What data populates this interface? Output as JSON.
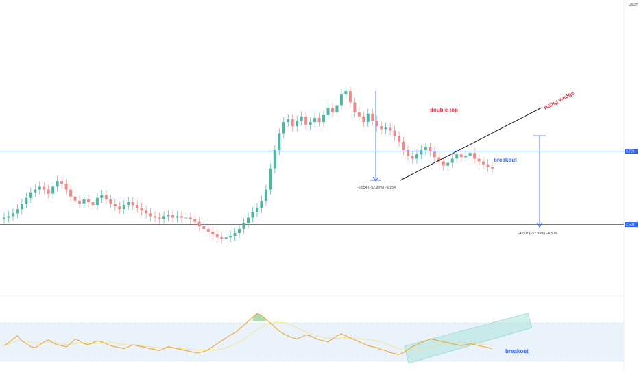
{
  "colors": {
    "up": "#4db6a4",
    "down": "#ef8a8a",
    "hline": "#2962ff",
    "rsi_line": "#f0a020",
    "rsi_ma": "#f4e27a",
    "rsi_band": "#eaf2fb",
    "channel": "#b3e5e0",
    "wedge": "#111111",
    "annot_red": "#e0263a",
    "annot_blue": "#2962ff"
  },
  "price_axis": {
    "unit": "USDT"
  },
  "chart_data": {
    "type": "candlestick",
    "ylim": [
      0,
      20
    ],
    "levels": {
      "upper": 9.726,
      "lower": 4.508
    },
    "annotations": {
      "double_top": "double top",
      "rising_wedge": "rising wedge",
      "breakout_price": "breakout",
      "breakout_rsi": "breakout",
      "measure_left": "−6.554 (−52.93%) −6,554",
      "measure_right": "−4.508 (−52.93%) −4,508"
    },
    "candles_close": [
      5.0,
      5.1,
      5.3,
      5.6,
      6.0,
      6.4,
      6.8,
      7.0,
      7.2,
      7.0,
      6.7,
      7.2,
      7.6,
      7.4,
      7.0,
      6.5,
      6.2,
      6.0,
      6.3,
      6.1,
      5.9,
      6.4,
      6.6,
      6.3,
      6.0,
      5.8,
      5.6,
      5.9,
      6.1,
      5.9,
      5.7,
      5.5,
      5.3,
      5.1,
      5.0,
      4.9,
      5.1,
      5.2,
      5.0,
      5.1,
      5.0,
      5.0,
      4.9,
      4.7,
      4.4,
      4.2,
      4.0,
      3.8,
      3.6,
      3.5,
      3.6,
      3.7,
      3.9,
      4.2,
      4.6,
      5.0,
      5.4,
      5.7,
      6.2,
      7.0,
      8.5,
      9.8,
      11.0,
      11.8,
      12.0,
      11.5,
      11.9,
      12.2,
      11.6,
      11.8,
      12.1,
      11.8,
      12.3,
      12.8,
      12.5,
      13.0,
      13.8,
      14.0,
      13.2,
      12.5,
      12.2,
      11.8,
      12.4,
      11.9,
      11.5,
      11.3,
      11.4,
      11.2,
      10.8,
      10.4,
      9.8,
      9.4,
      9.2,
      9.5,
      9.8,
      10.0,
      9.7,
      9.3,
      9.0,
      8.7,
      8.9,
      9.2,
      9.5,
      9.3,
      9.4,
      9.6,
      9.2,
      9.0,
      8.8,
      8.6,
      8.5
    ],
    "candles_open": [
      4.9,
      5.0,
      5.1,
      5.3,
      5.6,
      6.0,
      6.4,
      6.8,
      7.0,
      7.2,
      7.0,
      6.7,
      7.2,
      7.6,
      7.4,
      7.0,
      6.5,
      6.2,
      6.0,
      6.3,
      6.1,
      5.9,
      6.4,
      6.6,
      6.3,
      6.0,
      5.8,
      5.6,
      5.9,
      6.1,
      5.9,
      5.7,
      5.5,
      5.3,
      5.1,
      5.0,
      4.9,
      5.1,
      5.2,
      5.0,
      5.1,
      5.0,
      5.0,
      4.9,
      4.7,
      4.4,
      4.2,
      4.0,
      3.8,
      3.6,
      3.5,
      3.6,
      3.7,
      3.9,
      4.2,
      4.6,
      5.0,
      5.4,
      5.7,
      6.2,
      7.0,
      8.5,
      9.8,
      11.0,
      11.8,
      12.0,
      11.5,
      11.9,
      12.2,
      11.6,
      11.8,
      12.1,
      11.8,
      12.3,
      12.8,
      12.5,
      13.0,
      13.8,
      14.0,
      13.2,
      12.5,
      12.2,
      11.8,
      12.4,
      11.9,
      11.5,
      11.3,
      11.4,
      11.2,
      10.8,
      10.4,
      9.8,
      9.4,
      9.2,
      9.5,
      9.8,
      10.0,
      9.7,
      9.3,
      9.0,
      8.7,
      8.9,
      9.2,
      9.5,
      9.3,
      9.4,
      9.6,
      9.2,
      9.0,
      8.8,
      8.6
    ],
    "rsi": [
      45,
      48,
      52,
      55,
      50,
      47,
      44,
      43,
      46,
      49,
      51,
      48,
      46,
      45,
      44,
      47,
      52,
      50,
      47,
      46,
      48,
      50,
      49,
      47,
      45,
      44,
      43,
      42,
      44,
      46,
      45,
      44,
      43,
      42,
      41,
      40,
      42,
      44,
      43,
      42,
      41,
      40,
      39,
      38,
      38,
      39,
      41,
      44,
      47,
      50,
      53,
      56,
      58,
      62,
      66,
      70,
      74,
      78,
      76,
      72,
      68,
      64,
      60,
      57,
      55,
      53,
      52,
      54,
      56,
      55,
      53,
      51,
      50,
      49,
      52,
      55,
      57,
      55,
      53,
      51,
      49,
      47,
      45,
      44,
      43,
      41,
      40,
      38,
      37,
      36,
      38,
      41,
      44,
      46,
      48,
      50,
      52,
      51,
      50,
      49,
      48,
      47,
      46,
      45,
      46,
      47,
      46,
      45,
      44,
      43,
      42
    ]
  }
}
